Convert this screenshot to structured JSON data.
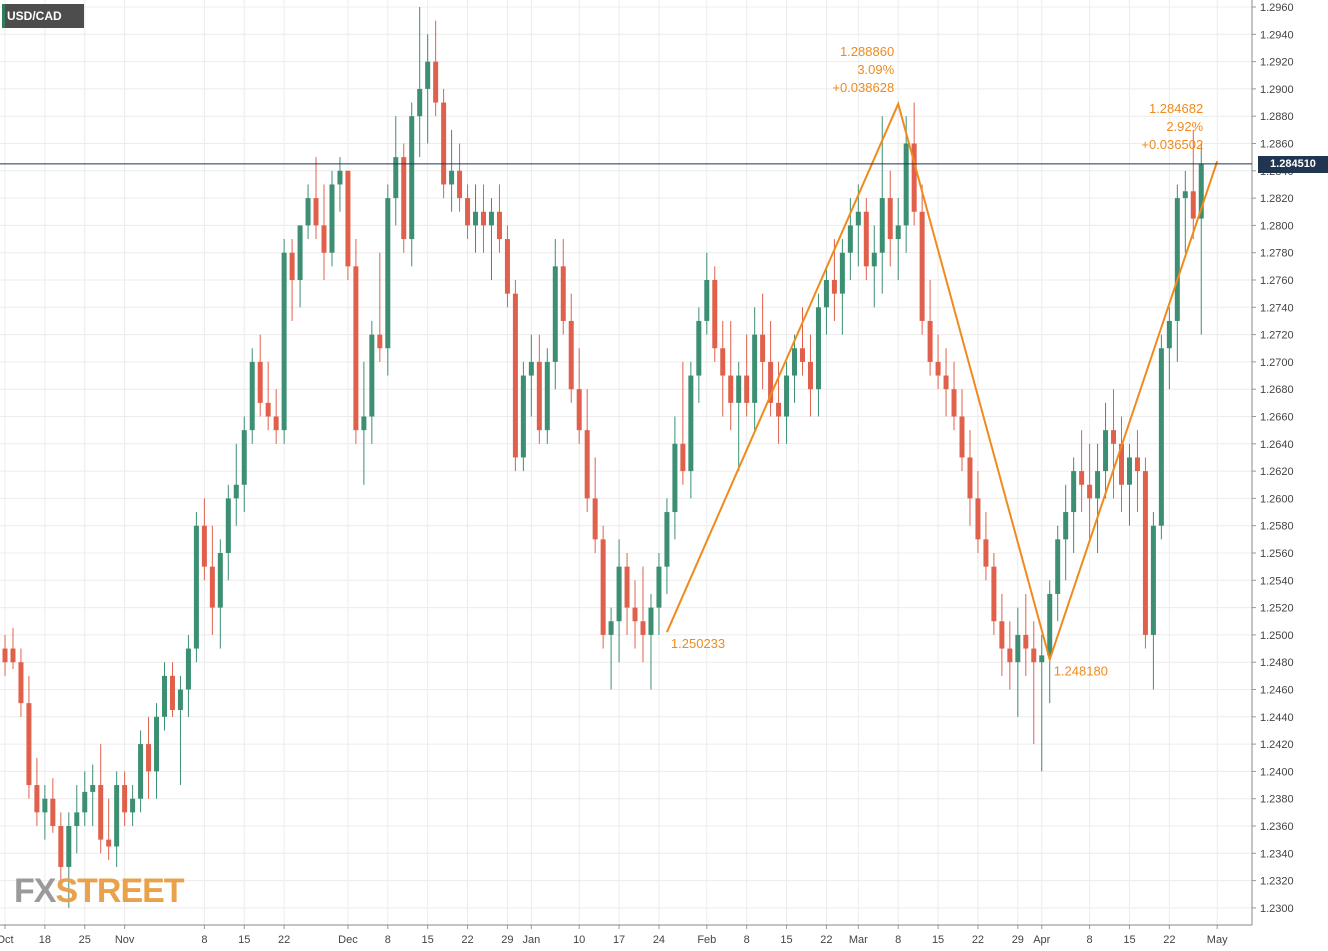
{
  "app": {
    "symbol": "USD/CAD",
    "watermark": {
      "part1": "FX",
      "part2": "STREET"
    },
    "current_price": "1.284510"
  },
  "colors": {
    "up": "#3c8f73",
    "down": "#e0604c",
    "grid": "#ececec",
    "axis_text": "#444444",
    "annotation": "#f08a1c",
    "price_line": "#1f3550"
  },
  "chart_data": {
    "type": "candlestick",
    "title": "",
    "y_axis": {
      "position": "right",
      "range": [
        1.2295,
        1.2965
      ],
      "ticks": [
        "1.2960",
        "1.2940",
        "1.2920",
        "1.2900",
        "1.2880",
        "1.2860",
        "1.2840",
        "1.2820",
        "1.2800",
        "1.2780",
        "1.2760",
        "1.2740",
        "1.2720",
        "1.2700",
        "1.2680",
        "1.2660",
        "1.2640",
        "1.2620",
        "1.2600",
        "1.2580",
        "1.2560",
        "1.2540",
        "1.2520",
        "1.2500",
        "1.2480",
        "1.2460",
        "1.2440",
        "1.2420",
        "1.2400",
        "1.2380",
        "1.2360",
        "1.2340",
        "1.2320",
        "1.2300"
      ]
    },
    "x_axis": {
      "ticks": [
        {
          "label": "Oct",
          "index": 0
        },
        {
          "label": "18",
          "index": 5
        },
        {
          "label": "25",
          "index": 10
        },
        {
          "label": "Nov",
          "index": 15
        },
        {
          "label": "8",
          "index": 25
        },
        {
          "label": "15",
          "index": 30
        },
        {
          "label": "22",
          "index": 35
        },
        {
          "label": "Dec",
          "index": 43
        },
        {
          "label": "8",
          "index": 48
        },
        {
          "label": "15",
          "index": 53
        },
        {
          "label": "22",
          "index": 58
        },
        {
          "label": "29",
          "index": 63
        },
        {
          "label": "Jan",
          "index": 66
        },
        {
          "label": "10",
          "index": 72
        },
        {
          "label": "17",
          "index": 77
        },
        {
          "label": "24",
          "index": 82
        },
        {
          "label": "Feb",
          "index": 88
        },
        {
          "label": "8",
          "index": 93
        },
        {
          "label": "15",
          "index": 98
        },
        {
          "label": "22",
          "index": 103
        },
        {
          "label": "Mar",
          "index": 107
        },
        {
          "label": "8",
          "index": 112
        },
        {
          "label": "15",
          "index": 117
        },
        {
          "label": "22",
          "index": 122
        },
        {
          "label": "29",
          "index": 127
        },
        {
          "label": "Apr",
          "index": 130
        },
        {
          "label": "8",
          "index": 136
        },
        {
          "label": "15",
          "index": 141
        },
        {
          "label": "22",
          "index": 146
        },
        {
          "label": "May",
          "index": 152
        }
      ]
    },
    "grid": true,
    "candles": [
      [
        1.249,
        1.25,
        1.247,
        1.248
      ],
      [
        1.249,
        1.2505,
        1.2475,
        1.248
      ],
      [
        1.248,
        1.249,
        1.244,
        1.245
      ],
      [
        1.245,
        1.247,
        1.238,
        1.239
      ],
      [
        1.239,
        1.241,
        1.236,
        1.237
      ],
      [
        1.237,
        1.239,
        1.235,
        1.238
      ],
      [
        1.238,
        1.2395,
        1.2355,
        1.236
      ],
      [
        1.236,
        1.237,
        1.232,
        1.233
      ],
      [
        1.233,
        1.237,
        1.23,
        1.236
      ],
      [
        1.236,
        1.239,
        1.234,
        1.237
      ],
      [
        1.237,
        1.24,
        1.236,
        1.2385
      ],
      [
        1.2385,
        1.2405,
        1.236,
        1.239
      ],
      [
        1.239,
        1.242,
        1.234,
        1.235
      ],
      [
        1.235,
        1.238,
        1.2335,
        1.2345
      ],
      [
        1.2345,
        1.24,
        1.233,
        1.239
      ],
      [
        1.239,
        1.24,
        1.236,
        1.237
      ],
      [
        1.237,
        1.239,
        1.236,
        1.238
      ],
      [
        1.238,
        1.243,
        1.237,
        1.242
      ],
      [
        1.242,
        1.244,
        1.238,
        1.24
      ],
      [
        1.24,
        1.245,
        1.238,
        1.244
      ],
      [
        1.244,
        1.248,
        1.243,
        1.247
      ],
      [
        1.247,
        1.248,
        1.244,
        1.2445
      ],
      [
        1.2445,
        1.247,
        1.239,
        1.246
      ],
      [
        1.246,
        1.25,
        1.244,
        1.249
      ],
      [
        1.249,
        1.259,
        1.248,
        1.258
      ],
      [
        1.258,
        1.26,
        1.254,
        1.255
      ],
      [
        1.255,
        1.258,
        1.25,
        1.252
      ],
      [
        1.252,
        1.257,
        1.249,
        1.256
      ],
      [
        1.256,
        1.261,
        1.254,
        1.26
      ],
      [
        1.26,
        1.264,
        1.258,
        1.261
      ],
      [
        1.261,
        1.266,
        1.259,
        1.265
      ],
      [
        1.265,
        1.271,
        1.264,
        1.27
      ],
      [
        1.27,
        1.272,
        1.266,
        1.267
      ],
      [
        1.267,
        1.27,
        1.265,
        1.266
      ],
      [
        1.266,
        1.268,
        1.264,
        1.265
      ],
      [
        1.265,
        1.279,
        1.264,
        1.278
      ],
      [
        1.278,
        1.279,
        1.273,
        1.276
      ],
      [
        1.276,
        1.28,
        1.274,
        1.28
      ],
      [
        1.28,
        1.283,
        1.279,
        1.282
      ],
      [
        1.282,
        1.285,
        1.279,
        1.28
      ],
      [
        1.28,
        1.283,
        1.276,
        1.278
      ],
      [
        1.278,
        1.284,
        1.277,
        1.283
      ],
      [
        1.283,
        1.285,
        1.281,
        1.284
      ],
      [
        1.284,
        1.284,
        1.276,
        1.277
      ],
      [
        1.277,
        1.279,
        1.264,
        1.265
      ],
      [
        1.265,
        1.27,
        1.261,
        1.266
      ],
      [
        1.266,
        1.273,
        1.264,
        1.272
      ],
      [
        1.272,
        1.278,
        1.27,
        1.271
      ],
      [
        1.271,
        1.283,
        1.269,
        1.282
      ],
      [
        1.282,
        1.288,
        1.28,
        1.285
      ],
      [
        1.285,
        1.286,
        1.278,
        1.279
      ],
      [
        1.279,
        1.289,
        1.277,
        1.288
      ],
      [
        1.288,
        1.296,
        1.285,
        1.29
      ],
      [
        1.29,
        1.294,
        1.286,
        1.292
      ],
      [
        1.292,
        1.295,
        1.288,
        1.289
      ],
      [
        1.289,
        1.29,
        1.282,
        1.283
      ],
      [
        1.283,
        1.287,
        1.281,
        1.284
      ],
      [
        1.284,
        1.286,
        1.281,
        1.282
      ],
      [
        1.282,
        1.283,
        1.279,
        1.28
      ],
      [
        1.28,
        1.283,
        1.278,
        1.281
      ],
      [
        1.281,
        1.283,
        1.278,
        1.28
      ],
      [
        1.28,
        1.282,
        1.276,
        1.281
      ],
      [
        1.281,
        1.283,
        1.278,
        1.279
      ],
      [
        1.279,
        1.28,
        1.274,
        1.275
      ],
      [
        1.275,
        1.276,
        1.262,
        1.263
      ],
      [
        1.263,
        1.27,
        1.262,
        1.269
      ],
      [
        1.269,
        1.272,
        1.266,
        1.27
      ],
      [
        1.27,
        1.272,
        1.264,
        1.265
      ],
      [
        1.265,
        1.271,
        1.264,
        1.27
      ],
      [
        1.27,
        1.279,
        1.268,
        1.277
      ],
      [
        1.277,
        1.279,
        1.272,
        1.273
      ],
      [
        1.273,
        1.275,
        1.267,
        1.268
      ],
      [
        1.268,
        1.271,
        1.264,
        1.265
      ],
      [
        1.265,
        1.268,
        1.259,
        1.26
      ],
      [
        1.26,
        1.263,
        1.256,
        1.257
      ],
      [
        1.257,
        1.258,
        1.249,
        1.25
      ],
      [
        1.25,
        1.252,
        1.246,
        1.251
      ],
      [
        1.251,
        1.257,
        1.248,
        1.255
      ],
      [
        1.255,
        1.256,
        1.25,
        1.252
      ],
      [
        1.252,
        1.254,
        1.249,
        1.251
      ],
      [
        1.251,
        1.255,
        1.248,
        1.25
      ],
      [
        1.25,
        1.253,
        1.246,
        1.252
      ],
      [
        1.252,
        1.256,
        1.25,
        1.255
      ],
      [
        1.255,
        1.26,
        1.253,
        1.259
      ],
      [
        1.259,
        1.266,
        1.257,
        1.264
      ],
      [
        1.264,
        1.27,
        1.261,
        1.262
      ],
      [
        1.262,
        1.27,
        1.26,
        1.269
      ],
      [
        1.269,
        1.274,
        1.267,
        1.273
      ],
      [
        1.273,
        1.278,
        1.272,
        1.276
      ],
      [
        1.276,
        1.277,
        1.27,
        1.271
      ],
      [
        1.271,
        1.273,
        1.266,
        1.269
      ],
      [
        1.269,
        1.273,
        1.265,
        1.267
      ],
      [
        1.267,
        1.27,
        1.262,
        1.269
      ],
      [
        1.269,
        1.272,
        1.266,
        1.267
      ],
      [
        1.267,
        1.274,
        1.265,
        1.272
      ],
      [
        1.272,
        1.275,
        1.268,
        1.27
      ],
      [
        1.27,
        1.273,
        1.266,
        1.267
      ],
      [
        1.267,
        1.27,
        1.264,
        1.266
      ],
      [
        1.266,
        1.27,
        1.264,
        1.269
      ],
      [
        1.269,
        1.272,
        1.267,
        1.271
      ],
      [
        1.271,
        1.274,
        1.269,
        1.27
      ],
      [
        1.27,
        1.272,
        1.266,
        1.268
      ],
      [
        1.268,
        1.275,
        1.266,
        1.274
      ],
      [
        1.274,
        1.277,
        1.272,
        1.276
      ],
      [
        1.276,
        1.279,
        1.273,
        1.275
      ],
      [
        1.275,
        1.279,
        1.272,
        1.278
      ],
      [
        1.278,
        1.282,
        1.276,
        1.28
      ],
      [
        1.28,
        1.283,
        1.277,
        1.281
      ],
      [
        1.281,
        1.282,
        1.276,
        1.277
      ],
      [
        1.277,
        1.28,
        1.274,
        1.278
      ],
      [
        1.278,
        1.288,
        1.275,
        1.282
      ],
      [
        1.282,
        1.284,
        1.277,
        1.279
      ],
      [
        1.279,
        1.282,
        1.276,
        1.28
      ],
      [
        1.28,
        1.288,
        1.278,
        1.286
      ],
      [
        1.286,
        1.289,
        1.28,
        1.281
      ],
      [
        1.281,
        1.283,
        1.272,
        1.273
      ],
      [
        1.273,
        1.276,
        1.269,
        1.27
      ],
      [
        1.27,
        1.272,
        1.268,
        1.269
      ],
      [
        1.269,
        1.271,
        1.266,
        1.268
      ],
      [
        1.268,
        1.27,
        1.265,
        1.266
      ],
      [
        1.266,
        1.268,
        1.262,
        1.263
      ],
      [
        1.263,
        1.265,
        1.258,
        1.26
      ],
      [
        1.26,
        1.262,
        1.256,
        1.257
      ],
      [
        1.257,
        1.259,
        1.254,
        1.255
      ],
      [
        1.255,
        1.256,
        1.25,
        1.251
      ],
      [
        1.251,
        1.253,
        1.247,
        1.249
      ],
      [
        1.249,
        1.251,
        1.246,
        1.248
      ],
      [
        1.248,
        1.252,
        1.244,
        1.25
      ],
      [
        1.25,
        1.253,
        1.247,
        1.249
      ],
      [
        1.249,
        1.251,
        1.242,
        1.248
      ],
      [
        1.248,
        1.25,
        1.24,
        1.2485
      ],
      [
        1.2485,
        1.254,
        1.245,
        1.253
      ],
      [
        1.253,
        1.258,
        1.251,
        1.257
      ],
      [
        1.257,
        1.261,
        1.254,
        1.259
      ],
      [
        1.259,
        1.263,
        1.256,
        1.262
      ],
      [
        1.262,
        1.265,
        1.259,
        1.261
      ],
      [
        1.261,
        1.264,
        1.257,
        1.26
      ],
      [
        1.26,
        1.264,
        1.256,
        1.262
      ],
      [
        1.262,
        1.267,
        1.26,
        1.265
      ],
      [
        1.265,
        1.268,
        1.26,
        1.264
      ],
      [
        1.264,
        1.266,
        1.259,
        1.261
      ],
      [
        1.261,
        1.264,
        1.258,
        1.263
      ],
      [
        1.263,
        1.265,
        1.259,
        1.262
      ],
      [
        1.262,
        1.263,
        1.249,
        1.25
      ],
      [
        1.25,
        1.259,
        1.246,
        1.258
      ],
      [
        1.258,
        1.272,
        1.257,
        1.271
      ],
      [
        1.271,
        1.274,
        1.268,
        1.273
      ],
      [
        1.273,
        1.283,
        1.27,
        1.282
      ],
      [
        1.282,
        1.284,
        1.278,
        1.2825
      ],
      [
        1.2825,
        1.287,
        1.279,
        1.2805
      ],
      [
        1.2805,
        1.286,
        1.272,
        1.2845
      ]
    ],
    "line_tool": {
      "points": [
        [
          83,
          1.2502
        ],
        [
          112,
          1.2889
        ],
        [
          131,
          1.2482
        ],
        [
          152,
          1.2847
        ]
      ],
      "labels": [
        {
          "lines": [
            "1.250233"
          ],
          "at": [
            83,
            1.2502
          ],
          "anchor": "start",
          "dx": 4,
          "dy": 16
        },
        {
          "lines": [
            "1.288860",
            "3.09%",
            "+0.038628"
          ],
          "at": [
            112,
            1.2889
          ],
          "anchor": "end",
          "dx": -4,
          "dy": -48
        },
        {
          "lines": [
            "1.248180"
          ],
          "at": [
            131,
            1.2482
          ],
          "anchor": "start",
          "dx": 4,
          "dy": 16
        },
        {
          "lines": [
            "1.284682",
            "2.92%",
            "+0.036502"
          ],
          "at": [
            152,
            1.2847
          ],
          "anchor": "end",
          "dx": -14,
          "dy": -48
        }
      ]
    }
  }
}
